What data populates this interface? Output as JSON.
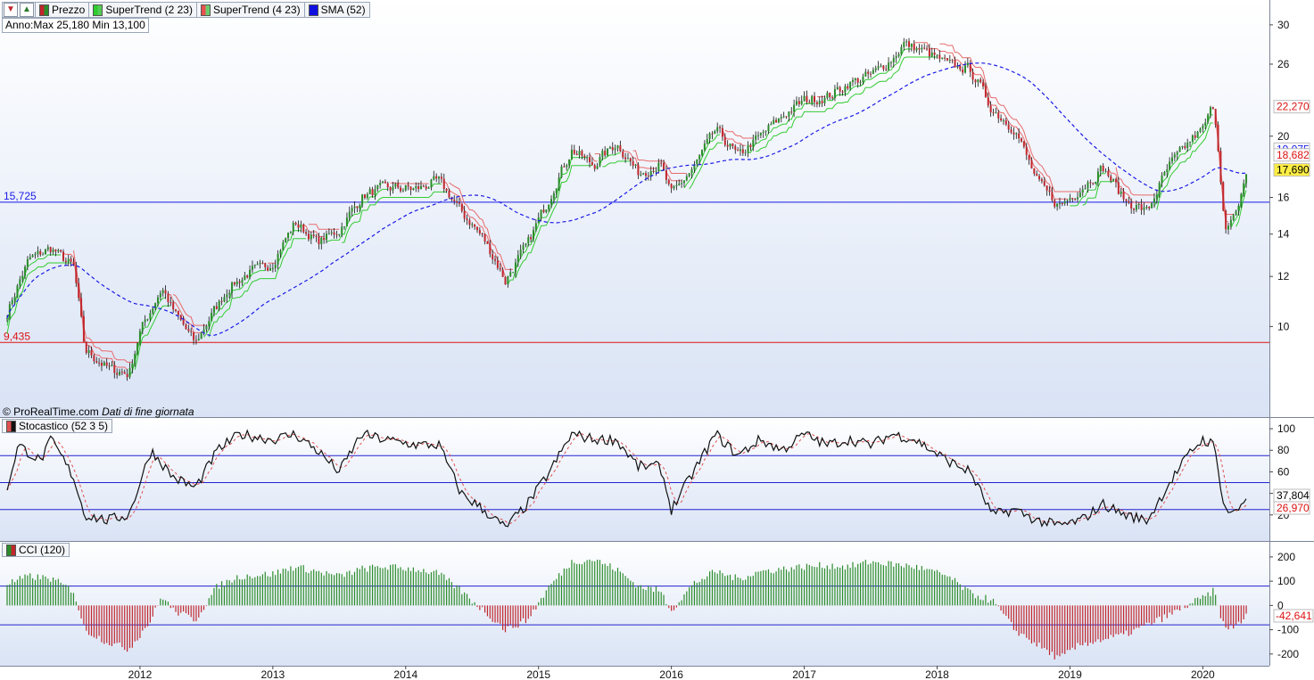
{
  "toolbar": {
    "legend": [
      {
        "label": "Prezzo",
        "swatch": "candle"
      },
      {
        "label": "SuperTrend (2 23)",
        "swatch": "st2"
      },
      {
        "label": "SuperTrend (4 23)",
        "swatch": "st4"
      },
      {
        "label": "SMA (52)",
        "swatch": "sma"
      }
    ]
  },
  "annotation": "Anno:Max 25,180 Min 13,100",
  "credit": {
    "source": "© ProRealTime.com",
    "note": "Dati di fine giornata"
  },
  "stochastic_label": "Stocastico (52 3 5)",
  "cci_label": "CCI (120)",
  "colors": {
    "up": "#2b8c2b",
    "down": "#c0272d",
    "supertrend_down": "#e86a6a",
    "supertrend_up": "#33cc33",
    "sma": "#1a1ae6",
    "panel_bg_top": "#ffffff",
    "panel_bg_bottom": "#d9e3f5",
    "level_high": "#1a1ae6",
    "level_low": "#dd1111"
  },
  "chart_data": [
    {
      "type": "candlestick",
      "panel": "price",
      "scale": "log",
      "y_ticks": [
        10,
        12,
        14,
        16,
        20,
        26,
        30
      ],
      "x_ticks": [
        "2012",
        "2013",
        "2014",
        "2015",
        "2016",
        "2017",
        "2018",
        "2019",
        "2020"
      ],
      "x_range": [
        "2011-01",
        "2020-05"
      ],
      "ylim": [
        7.5,
        32
      ],
      "horizontal_lines": [
        {
          "value": 15.725,
          "label": "15,725",
          "color": "#1a1ae6"
        },
        {
          "value": 9.435,
          "label": "9,435",
          "color": "#dd1111"
        }
      ],
      "last_values": [
        {
          "value": 22.27,
          "label": "22,270",
          "color": "#dd1111",
          "bg": "#ffffff"
        },
        {
          "value": 19.075,
          "label": "19,075",
          "color": "#1a1ae6",
          "bg": "#ffffff"
        },
        {
          "value": 18.682,
          "label": "18,682",
          "color": "#dd1111",
          "bg": "#ffffff"
        },
        {
          "value": 17.69,
          "label": "17,690",
          "color": "#000000",
          "bg": "#ffee44"
        }
      ],
      "price_path": [
        [
          "2011-01",
          10.5
        ],
        [
          "2011-03",
          12.8
        ],
        [
          "2011-05",
          13.3
        ],
        [
          "2011-07",
          12.4
        ],
        [
          "2011-08",
          9.2
        ],
        [
          "2011-10",
          8.6
        ],
        [
          "2011-12",
          8.4
        ],
        [
          "2012-01",
          9.8
        ],
        [
          "2012-03",
          11.5
        ],
        [
          "2012-04",
          10.6
        ],
        [
          "2012-06",
          9.4
        ],
        [
          "2012-09",
          11.5
        ],
        [
          "2012-11",
          12.2
        ],
        [
          "2013-01",
          12.6
        ],
        [
          "2013-03",
          14.6
        ],
        [
          "2013-05",
          13.6
        ],
        [
          "2013-07",
          14.2
        ],
        [
          "2013-09",
          16.0
        ],
        [
          "2013-11",
          16.6
        ],
        [
          "2014-02",
          16.5
        ],
        [
          "2014-04",
          17.0
        ],
        [
          "2014-06",
          15.2
        ],
        [
          "2014-08",
          13.8
        ],
        [
          "2014-10",
          11.8
        ],
        [
          "2014-12",
          13.5
        ],
        [
          "2015-02",
          16.0
        ],
        [
          "2015-04",
          19.0
        ],
        [
          "2015-06",
          18.0
        ],
        [
          "2015-08",
          19.5
        ],
        [
          "2015-10",
          17.5
        ],
        [
          "2015-12",
          18.0
        ],
        [
          "2016-01",
          16.2
        ],
        [
          "2016-03",
          17.8
        ],
        [
          "2016-05",
          20.5
        ],
        [
          "2016-07",
          18.6
        ],
        [
          "2016-09",
          20.0
        ],
        [
          "2016-11",
          21.5
        ],
        [
          "2017-01",
          22.8
        ],
        [
          "2017-03",
          23.0
        ],
        [
          "2017-05",
          24.2
        ],
        [
          "2017-07",
          25.0
        ],
        [
          "2017-09",
          26.5
        ],
        [
          "2017-10",
          28.0
        ],
        [
          "2017-12",
          27.2
        ],
        [
          "2018-02",
          26.0
        ],
        [
          "2018-04",
          25.5
        ],
        [
          "2018-06",
          22.0
        ],
        [
          "2018-08",
          20.5
        ],
        [
          "2018-10",
          17.0
        ],
        [
          "2018-12",
          15.5
        ],
        [
          "2019-02",
          16.5
        ],
        [
          "2019-04",
          17.8
        ],
        [
          "2019-06",
          15.8
        ],
        [
          "2019-08",
          15.2
        ],
        [
          "2019-10",
          18.0
        ],
        [
          "2019-12",
          19.8
        ],
        [
          "2020-01",
          20.5
        ],
        [
          "2020-02",
          22.5
        ],
        [
          "2020-03",
          14.0
        ],
        [
          "2020-04",
          15.0
        ],
        [
          "2020-05",
          17.69
        ]
      ]
    },
    {
      "type": "line",
      "panel": "stochastic",
      "title": "Stocastico (52 3 5)",
      "y_ticks": [
        20,
        40,
        60,
        80,
        100
      ],
      "ylim": [
        0,
        105
      ],
      "horizontal_lines": [
        75,
        50,
        25
      ],
      "last_values": [
        {
          "value": 37.804,
          "label": "37,804",
          "color": "#000000"
        },
        {
          "value": 26.97,
          "label": "26,970",
          "color": "#dd1111"
        }
      ],
      "series_path": [
        [
          "2011-01",
          45
        ],
        [
          "2011-02",
          85
        ],
        [
          "2011-04",
          70
        ],
        [
          "2011-05",
          90
        ],
        [
          "2011-07",
          55
        ],
        [
          "2011-08",
          20
        ],
        [
          "2011-10",
          15
        ],
        [
          "2011-12",
          20
        ],
        [
          "2012-02",
          80
        ],
        [
          "2012-04",
          55
        ],
        [
          "2012-06",
          45
        ],
        [
          "2012-08",
          80
        ],
        [
          "2012-10",
          95
        ],
        [
          "2013-01",
          90
        ],
        [
          "2013-03",
          95
        ],
        [
          "2013-05",
          80
        ],
        [
          "2013-07",
          60
        ],
        [
          "2013-09",
          95
        ],
        [
          "2013-11",
          90
        ],
        [
          "2014-02",
          85
        ],
        [
          "2014-04",
          85
        ],
        [
          "2014-06",
          40
        ],
        [
          "2014-08",
          25
        ],
        [
          "2014-10",
          8
        ],
        [
          "2014-12",
          30
        ],
        [
          "2015-02",
          60
        ],
        [
          "2015-04",
          95
        ],
        [
          "2015-06",
          90
        ],
        [
          "2015-08",
          90
        ],
        [
          "2015-10",
          65
        ],
        [
          "2015-12",
          65
        ],
        [
          "2016-01",
          25
        ],
        [
          "2016-03",
          60
        ],
        [
          "2016-05",
          95
        ],
        [
          "2016-07",
          75
        ],
        [
          "2016-09",
          90
        ],
        [
          "2016-11",
          80
        ],
        [
          "2017-01",
          95
        ],
        [
          "2017-03",
          85
        ],
        [
          "2017-05",
          90
        ],
        [
          "2017-07",
          85
        ],
        [
          "2017-09",
          95
        ],
        [
          "2017-11",
          90
        ],
        [
          "2018-02",
          70
        ],
        [
          "2018-04",
          60
        ],
        [
          "2018-06",
          20
        ],
        [
          "2018-08",
          25
        ],
        [
          "2018-10",
          15
        ],
        [
          "2018-12",
          10
        ],
        [
          "2019-02",
          15
        ],
        [
          "2019-04",
          30
        ],
        [
          "2019-06",
          20
        ],
        [
          "2019-08",
          15
        ],
        [
          "2019-10",
          50
        ],
        [
          "2019-12",
          80
        ],
        [
          "2020-01",
          90
        ],
        [
          "2020-02",
          85
        ],
        [
          "2020-03",
          25
        ],
        [
          "2020-04",
          22
        ],
        [
          "2020-05",
          37.8
        ]
      ]
    },
    {
      "type": "bar",
      "panel": "cci",
      "title": "CCI (120)",
      "y_ticks": [
        -200,
        -100,
        0,
        100,
        200
      ],
      "ylim": [
        -230,
        240
      ],
      "horizontal_lines": [
        80,
        -80
      ],
      "last_values": [
        {
          "value": -42.641,
          "label": "-42,641",
          "color": "#dd1111"
        }
      ],
      "series_path": [
        [
          "2011-01",
          90
        ],
        [
          "2011-03",
          120
        ],
        [
          "2011-05",
          110
        ],
        [
          "2011-07",
          60
        ],
        [
          "2011-08",
          -100
        ],
        [
          "2011-10",
          -150
        ],
        [
          "2011-12",
          -180
        ],
        [
          "2012-02",
          -60
        ],
        [
          "2012-03",
          40
        ],
        [
          "2012-04",
          -20
        ],
        [
          "2012-06",
          -60
        ],
        [
          "2012-08",
          80
        ],
        [
          "2012-10",
          120
        ],
        [
          "2013-01",
          130
        ],
        [
          "2013-03",
          160
        ],
        [
          "2013-05",
          140
        ],
        [
          "2013-07",
          120
        ],
        [
          "2013-09",
          150
        ],
        [
          "2013-11",
          160
        ],
        [
          "2014-02",
          150
        ],
        [
          "2014-04",
          130
        ],
        [
          "2014-06",
          60
        ],
        [
          "2014-08",
          -20
        ],
        [
          "2014-10",
          -100
        ],
        [
          "2014-12",
          -60
        ],
        [
          "2015-02",
          80
        ],
        [
          "2015-04",
          180
        ],
        [
          "2015-06",
          190
        ],
        [
          "2015-08",
          150
        ],
        [
          "2015-10",
          80
        ],
        [
          "2015-12",
          60
        ],
        [
          "2016-01",
          -20
        ],
        [
          "2016-03",
          90
        ],
        [
          "2016-05",
          140
        ],
        [
          "2016-07",
          110
        ],
        [
          "2016-09",
          140
        ],
        [
          "2016-11",
          150
        ],
        [
          "2017-01",
          160
        ],
        [
          "2017-03",
          165
        ],
        [
          "2017-05",
          160
        ],
        [
          "2017-07",
          180
        ],
        [
          "2017-09",
          170
        ],
        [
          "2017-11",
          160
        ],
        [
          "2018-02",
          120
        ],
        [
          "2018-04",
          50
        ],
        [
          "2018-06",
          20
        ],
        [
          "2018-08",
          -100
        ],
        [
          "2018-10",
          -160
        ],
        [
          "2018-12",
          -220
        ],
        [
          "2019-02",
          -160
        ],
        [
          "2019-04",
          -140
        ],
        [
          "2019-06",
          -120
        ],
        [
          "2019-08",
          -80
        ],
        [
          "2019-10",
          -40
        ],
        [
          "2019-12",
          10
        ],
        [
          "2020-01",
          30
        ],
        [
          "2020-02",
          60
        ],
        [
          "2020-03",
          -100
        ],
        [
          "2020-04",
          -80
        ],
        [
          "2020-05",
          -42.6
        ]
      ]
    }
  ]
}
